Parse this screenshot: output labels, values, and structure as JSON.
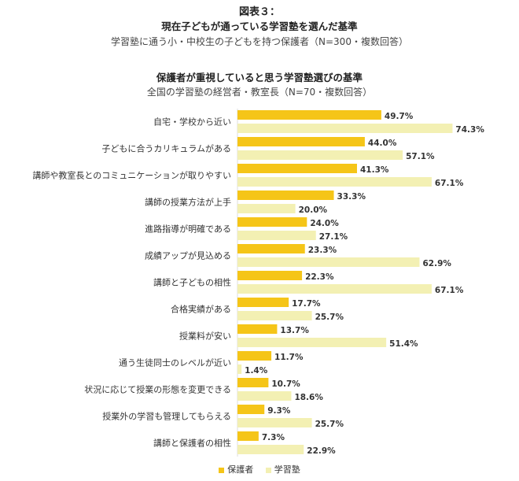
{
  "figure": {
    "number": "図表３：",
    "title1": "現在子どもが通っている学習塾を選んだ基準",
    "subtitle1": "学習塾に通う小・中校生の子どもを持つ保護者（N=300・複数回答）",
    "title2": "保護者が重視していると思う学習塾選びの基準",
    "subtitle2": "全国の学習塾の経営者・教室長（N=70・複数回答）"
  },
  "colors": {
    "parents": "#f5c518",
    "juku": "#f3f0b3"
  },
  "chart_data": {
    "type": "bar",
    "orientation": "horizontal",
    "categories": [
      "自宅・学校から近い",
      "子どもに合うカリキュラムがある",
      "講師や教室長とのコミュニケーションが取りやすい",
      "講師の授業方法が上手",
      "進路指導が明確である",
      "成績アップが見込める",
      "講師と子どもの相性",
      "合格実績がある",
      "授業料が安い",
      "通う生徒同士のレベルが近い",
      "状況に応じて授業の形態を変更できる",
      "授業外の学習も管理してもらえる",
      "講師と保護者の相性"
    ],
    "series": [
      {
        "name": "保護者",
        "values": [
          49.7,
          44.0,
          41.3,
          33.3,
          24.0,
          23.3,
          22.3,
          17.7,
          13.7,
          11.7,
          10.7,
          9.3,
          7.3
        ],
        "labels": [
          "49.7%",
          "44.0%",
          "41.3%",
          "33.3%",
          "24.0%",
          "23.3%",
          "22.3%",
          "17.7%",
          "13.7%",
          "11.7%",
          "10.7%",
          "9.3%",
          "7.3%"
        ]
      },
      {
        "name": "学習塾",
        "values": [
          74.3,
          57.1,
          67.1,
          20.0,
          27.1,
          62.9,
          67.1,
          25.7,
          51.4,
          1.4,
          18.6,
          25.7,
          22.9
        ],
        "labels": [
          "74.3%",
          "57.1%",
          "67.1%",
          "20.0%",
          "27.1%",
          "62.9%",
          "67.1%",
          "25.7%",
          "51.4%",
          "1.4%",
          "18.6%",
          "25.7%",
          "22.9%"
        ]
      }
    ],
    "xlim": [
      0,
      100
    ],
    "grid": false,
    "legend_position": "bottom-center"
  }
}
